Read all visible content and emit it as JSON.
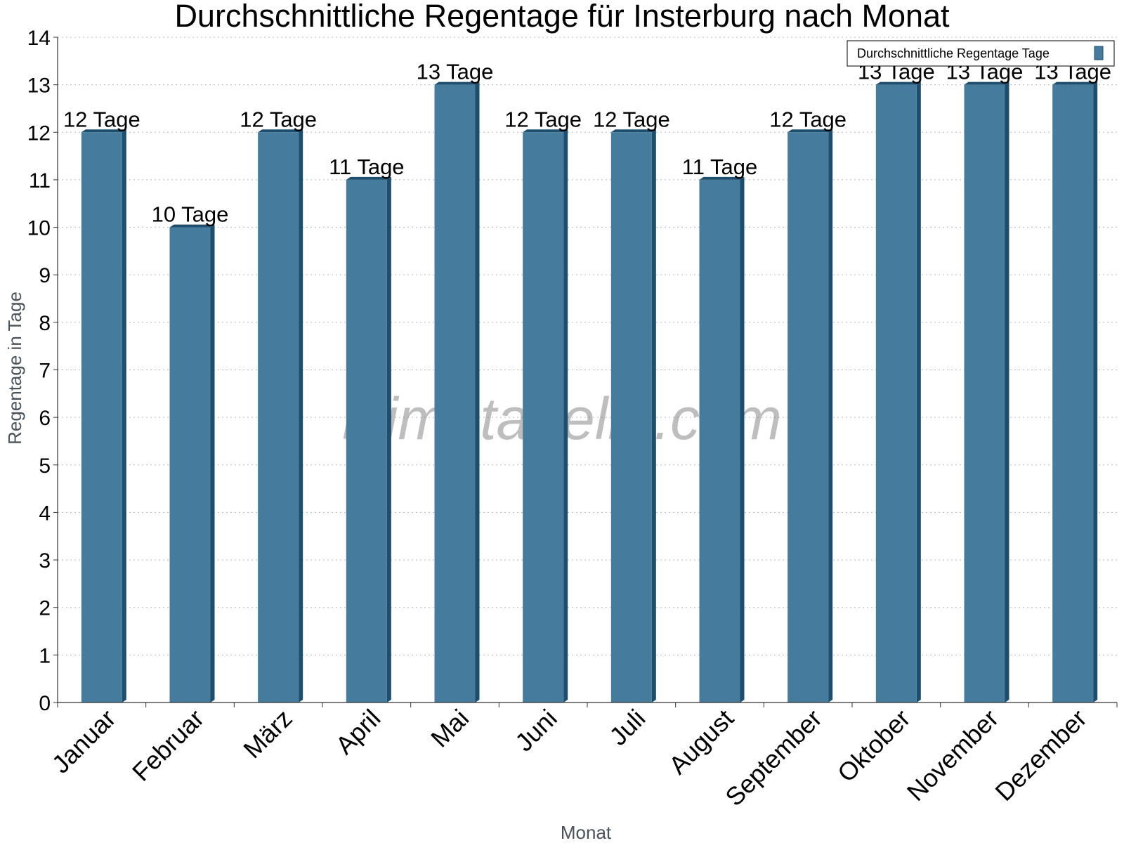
{
  "chart_data": {
    "type": "bar",
    "title": "Durchschnittliche Regentage für Insterburg nach Monat",
    "xlabel": "Monat",
    "ylabel": "Regentage in Tage",
    "ylim": [
      0,
      14
    ],
    "yticks": [
      "0",
      "1",
      "2",
      "3",
      "4",
      "5",
      "6",
      "7",
      "8",
      "9",
      "10",
      "11",
      "12",
      "13",
      "14"
    ],
    "grid": true,
    "legend_position": "top-right",
    "categories": [
      "Januar",
      "Februar",
      "März",
      "April",
      "Mai",
      "Juni",
      "Juli",
      "August",
      "September",
      "Oktober",
      "November",
      "Dezember"
    ],
    "series": [
      {
        "name": "Durchschnittliche Regentage Tage",
        "values": [
          12,
          10,
          12,
          11,
          13,
          12,
          12,
          11,
          12,
          13,
          13,
          13
        ],
        "labels": [
          "12 Tage",
          "10 Tage",
          "12 Tage",
          "11 Tage",
          "13 Tage",
          "12 Tage",
          "12 Tage",
          "11 Tage",
          "12 Tage",
          "13 Tage",
          "13 Tage",
          "13 Tage"
        ],
        "color": "#457b9d",
        "shade_color": "#1d4e6e"
      }
    ]
  },
  "watermark": "klimatabelle.com"
}
